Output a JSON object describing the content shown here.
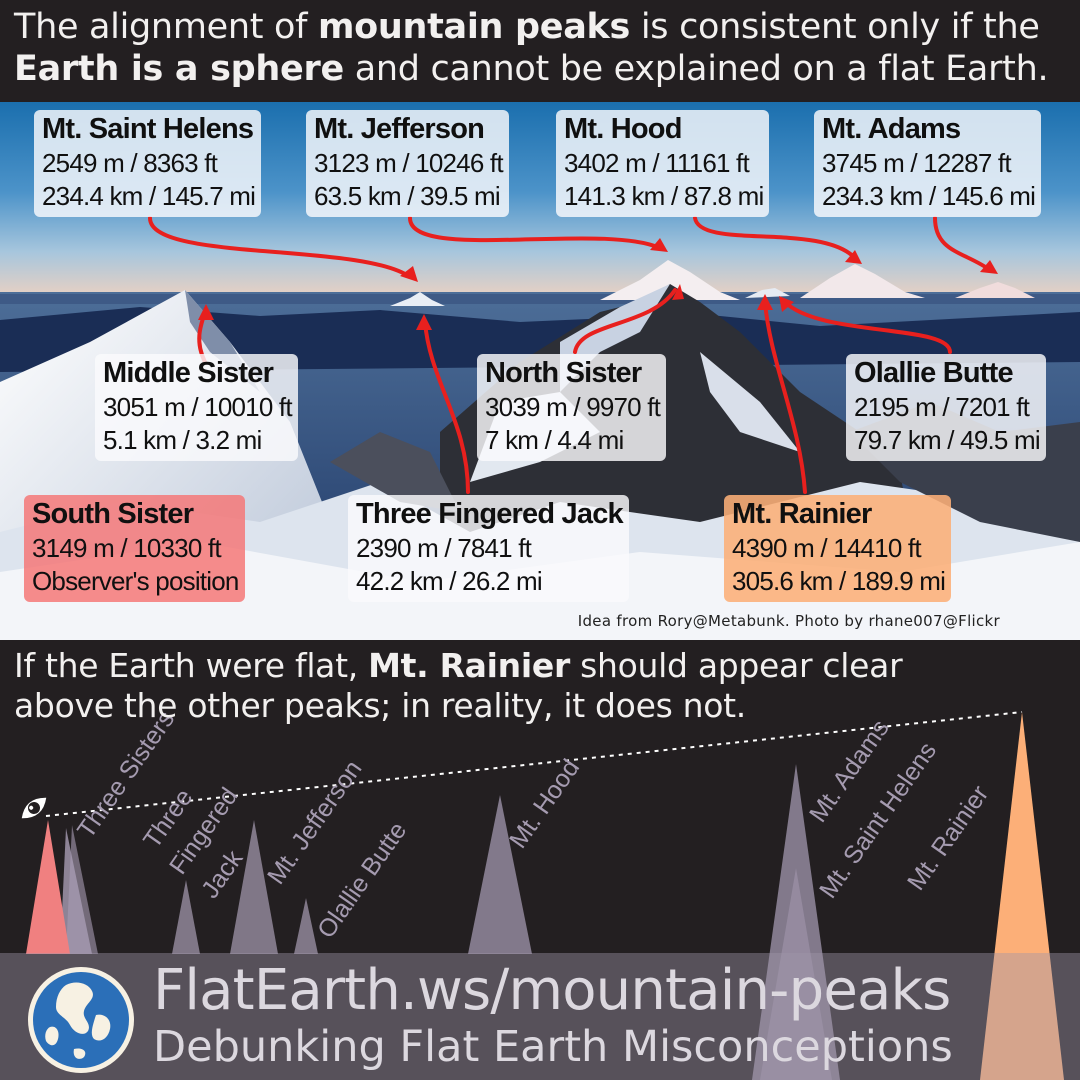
{
  "header": {
    "line1_pre": "The alignment of ",
    "line1_bold": "mountain peaks",
    "line1_post": " is consistent only if the",
    "line2_bold": "Earth is a sphere",
    "line2_post": " and cannot be explained on a flat Earth."
  },
  "labels": [
    {
      "name": "Mt. Saint Helens",
      "height": "2549 m / 8363 ft",
      "distance": "234.4 km / 145.7 mi"
    },
    {
      "name": "Mt. Jefferson",
      "height": "3123 m / 10246 ft",
      "distance": "63.5 km / 39.5 mi"
    },
    {
      "name": "Mt. Hood",
      "height": "3402 m / 11161 ft",
      "distance": "141.3 km / 87.8 mi"
    },
    {
      "name": "Mt. Adams",
      "height": "3745 m / 12287 ft",
      "distance": "234.3 km / 145.6 mi"
    },
    {
      "name": "Middle Sister",
      "height": "3051 m / 10010 ft",
      "distance": "5.1 km / 3.2 mi"
    },
    {
      "name": "North Sister",
      "height": "3039 m / 9970 ft",
      "distance": "7 km / 4.4 mi"
    },
    {
      "name": "Olallie Butte",
      "height": "2195 m / 7201 ft",
      "distance": "79.7 km / 49.5 mi"
    },
    {
      "name": "South Sister",
      "height": "3149 m / 10330 ft",
      "distance": "Observer's position"
    },
    {
      "name": "Three Fingered Jack",
      "height": "2390 m / 7841 ft",
      "distance": "42.2 km / 26.2 mi"
    },
    {
      "name": "Mt. Rainier",
      "height": "4390 m / 14410 ft",
      "distance": "305.6 km / 189.9 mi"
    }
  ],
  "credit": "Idea from Rory@Metabunk. Photo by rhane007@Flickr",
  "bottom": {
    "pre": "If the Earth were flat, ",
    "bold": "Mt. Rainier",
    "post1": " should appear clear",
    "line2": "above the other peaks; in reality, it does not."
  },
  "diagram_labels": {
    "three_sisters": "Three Sisters",
    "tfj_1": "Three",
    "tfj_2": "Fingered",
    "tfj_3": "Jack",
    "jefferson": "Mt. Jefferson",
    "olallie": "Olallie Butte",
    "hood": "Mt. Hood",
    "adams": "Mt. Adams",
    "saint_helens": "Mt. Saint Helens",
    "rainier": "Mt. Rainier"
  },
  "footer": {
    "url": "FlatEarth.ws/mountain-peaks",
    "tagline": "Debunking Flat Earth Misconceptions"
  },
  "colors": {
    "background": "#231f21",
    "observer_peak": "#f08080",
    "rainier_peak": "#fcaf78",
    "other_peaks": "#a89cb4",
    "arrow": "#e8201e"
  }
}
